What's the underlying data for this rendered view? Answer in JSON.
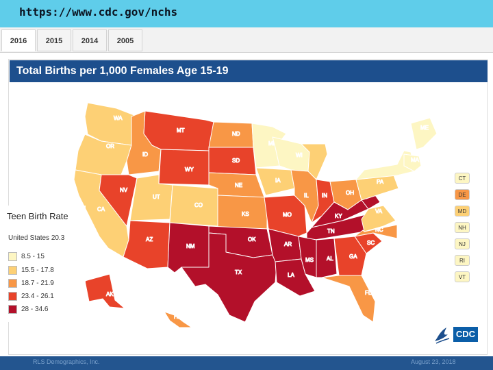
{
  "browser": {
    "url": "https://www.cdc.gov/nchs"
  },
  "tabs": [
    {
      "label": "2016"
    },
    {
      "label": "2015"
    },
    {
      "label": "2014"
    },
    {
      "label": "2005"
    }
  ],
  "map": {
    "title": "Total Births per 1,000 Females Age 15-19",
    "states": [
      {
        "abbr": "WA",
        "bin": 1
      },
      {
        "abbr": "OR",
        "bin": 1
      },
      {
        "abbr": "CA",
        "bin": 1
      },
      {
        "abbr": "ID",
        "bin": 2
      },
      {
        "abbr": "NV",
        "bin": 3
      },
      {
        "abbr": "MT",
        "bin": 3
      },
      {
        "abbr": "WY",
        "bin": 3
      },
      {
        "abbr": "UT",
        "bin": 1
      },
      {
        "abbr": "CO",
        "bin": 1
      },
      {
        "abbr": "AZ",
        "bin": 3
      },
      {
        "abbr": "NM",
        "bin": 4
      },
      {
        "abbr": "ND",
        "bin": 2
      },
      {
        "abbr": "SD",
        "bin": 3
      },
      {
        "abbr": "NE",
        "bin": 2
      },
      {
        "abbr": "KS",
        "bin": 2
      },
      {
        "abbr": "OK",
        "bin": 4
      },
      {
        "abbr": "TX",
        "bin": 4
      },
      {
        "abbr": "MN",
        "bin": 0
      },
      {
        "abbr": "IA",
        "bin": 1
      },
      {
        "abbr": "MO",
        "bin": 3
      },
      {
        "abbr": "AR",
        "bin": 4
      },
      {
        "abbr": "LA",
        "bin": 4
      },
      {
        "abbr": "WI",
        "bin": 0
      },
      {
        "abbr": "IL",
        "bin": 2
      },
      {
        "abbr": "MI",
        "bin": 1
      },
      {
        "abbr": "IN",
        "bin": 3
      },
      {
        "abbr": "OH",
        "bin": 2
      },
      {
        "abbr": "KY",
        "bin": 4
      },
      {
        "abbr": "TN",
        "bin": 4
      },
      {
        "abbr": "MS",
        "bin": 4
      },
      {
        "abbr": "AL",
        "bin": 4
      },
      {
        "abbr": "GA",
        "bin": 3
      },
      {
        "abbr": "FL",
        "bin": 2
      },
      {
        "abbr": "SC",
        "bin": 3
      },
      {
        "abbr": "NC",
        "bin": 2
      },
      {
        "abbr": "VA",
        "bin": 1
      },
      {
        "abbr": "WV",
        "bin": 4
      },
      {
        "abbr": "PA",
        "bin": 1
      },
      {
        "abbr": "NY",
        "bin": 0
      },
      {
        "abbr": "ME",
        "bin": 0
      },
      {
        "abbr": "MA",
        "bin": 0
      },
      {
        "abbr": "AK",
        "bin": 3
      },
      {
        "abbr": "HI",
        "bin": 2
      }
    ],
    "small_states": [
      {
        "abbr": "CT",
        "bin": 0
      },
      {
        "abbr": "DE",
        "bin": 2
      },
      {
        "abbr": "MD",
        "bin": 1
      },
      {
        "abbr": "NH",
        "bin": 0
      },
      {
        "abbr": "NJ",
        "bin": 0
      },
      {
        "abbr": "RI",
        "bin": 0
      },
      {
        "abbr": "VT",
        "bin": 0
      }
    ]
  },
  "legend": {
    "title": "Teen Birth Rate",
    "us_rate": "United States 20.3",
    "bins": [
      {
        "label": "8.5 - 15",
        "color": "#fdf6c3"
      },
      {
        "label": "15.5 - 17.8",
        "color": "#fdd075"
      },
      {
        "label": "18.7 - 21.9",
        "color": "#f89746"
      },
      {
        "label": "23.4 - 26.1",
        "color": "#e8432a"
      },
      {
        "label": "28 - 34.6",
        "color": "#b3102a"
      }
    ]
  },
  "logos": {
    "cdc": "CDC",
    "hhs": "hhs-eagle-icon"
  },
  "footer": {
    "left": "RLS Demographics, Inc.",
    "right": "August 23, 2018"
  }
}
